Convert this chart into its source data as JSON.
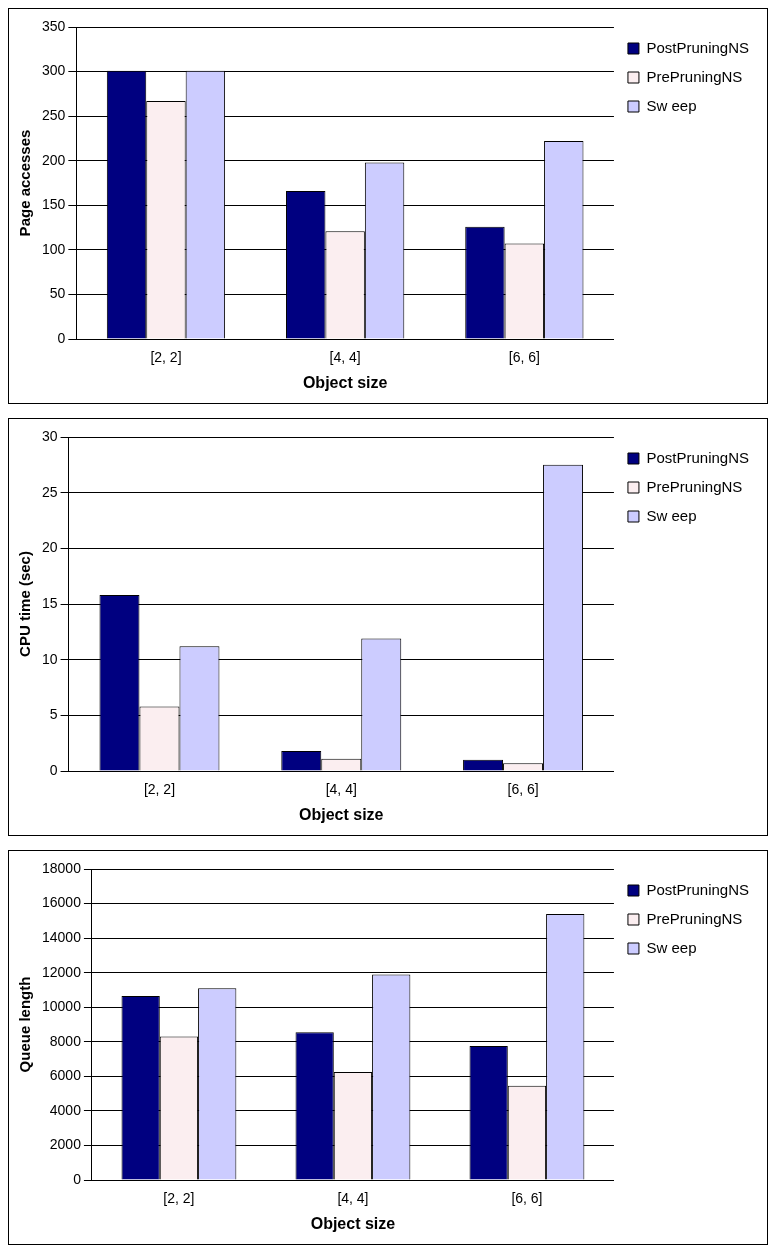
{
  "chart_data": [
    {
      "type": "bar",
      "xlabel": "Object size",
      "ylabel": "Page accesses",
      "categories": [
        "[2, 2]",
        "[4, 4]",
        "[6, 6]"
      ],
      "ylim": [
        0,
        350
      ],
      "yticks": [
        0,
        50,
        100,
        150,
        200,
        250,
        300,
        350
      ],
      "grid": "y",
      "legend": "top right",
      "series": [
        {
          "name": "PostPruningNS",
          "color": "#000080",
          "values": [
            301,
            166,
            126
          ]
        },
        {
          "name": "PrePruningNS",
          "color": "#fbeef0",
          "values": [
            267,
            121,
            107
          ]
        },
        {
          "name": "Sw eep",
          "color": "#ccccff",
          "values": [
            301,
            198,
            222
          ]
        }
      ]
    },
    {
      "type": "bar",
      "xlabel": "Object size",
      "ylabel": "CPU time (sec)",
      "categories": [
        "[2, 2]",
        "[4, 4]",
        "[6, 6]"
      ],
      "ylim": [
        0,
        30
      ],
      "yticks": [
        0,
        5,
        10,
        15,
        20,
        25,
        30
      ],
      "grid": "y",
      "legend": "top right",
      "series": [
        {
          "name": "PostPruningNS",
          "color": "#000080",
          "values": [
            15.8,
            1.8,
            1.0
          ]
        },
        {
          "name": "PrePruningNS",
          "color": "#fbeef0",
          "values": [
            5.8,
            1.1,
            0.7
          ]
        },
        {
          "name": "Sw eep",
          "color": "#ccccff",
          "values": [
            11.2,
            11.9,
            27.5
          ]
        }
      ]
    },
    {
      "type": "bar",
      "xlabel": "Object size",
      "ylabel": "Queue length",
      "categories": [
        "[2, 2]",
        "[4, 4]",
        "[6, 6]"
      ],
      "ylim": [
        0,
        18000
      ],
      "yticks": [
        0,
        2000,
        4000,
        6000,
        8000,
        10000,
        12000,
        14000,
        16000,
        18000
      ],
      "grid": "y",
      "legend": "top right",
      "series": [
        {
          "name": "PostPruningNS",
          "color": "#000080",
          "values": [
            10650,
            8550,
            7750
          ]
        },
        {
          "name": "PrePruningNS",
          "color": "#fbeef0",
          "values": [
            8300,
            6250,
            5450
          ]
        },
        {
          "name": "Sw eep",
          "color": "#ccccff",
          "values": [
            11100,
            11900,
            15400
          ]
        }
      ]
    }
  ]
}
